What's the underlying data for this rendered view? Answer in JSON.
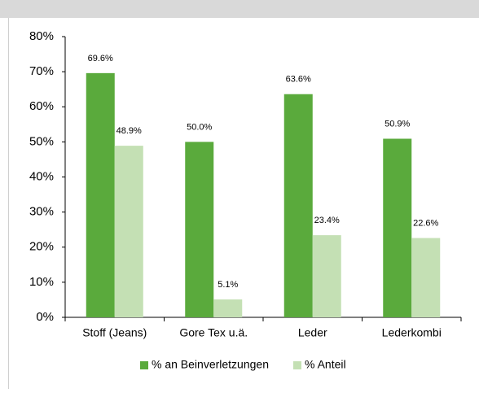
{
  "chart_data": {
    "type": "bar",
    "categories": [
      "Stoff (Jeans)",
      "Gore Tex u.ä.",
      "Leder",
      "Lederkombi"
    ],
    "series": [
      {
        "name": "% an Beinverletzungen",
        "color": "#5aaa3c",
        "values": [
          69.6,
          50.0,
          63.6,
          50.9
        ],
        "value_labels": [
          "69.6%",
          "50.0%",
          "63.6%",
          "50.9%"
        ]
      },
      {
        "name": "% Anteil",
        "color": "#c4e0b4",
        "values": [
          48.9,
          5.1,
          23.4,
          22.6
        ],
        "value_labels": [
          "48.9%",
          "5.1%",
          "23.4%",
          "22.6%"
        ]
      }
    ],
    "ylim": [
      0,
      80
    ],
    "yticks": [
      {
        "value": 0,
        "label": "0%"
      },
      {
        "value": 10,
        "label": "10%"
      },
      {
        "value": 20,
        "label": "20%"
      },
      {
        "value": 30,
        "label": "30%"
      },
      {
        "value": 40,
        "label": "40%"
      },
      {
        "value": 50,
        "label": "50%"
      },
      {
        "value": 60,
        "label": "60%"
      },
      {
        "value": 70,
        "label": "70%"
      },
      {
        "value": 80,
        "label": "80%"
      }
    ],
    "legend": "bottom"
  }
}
